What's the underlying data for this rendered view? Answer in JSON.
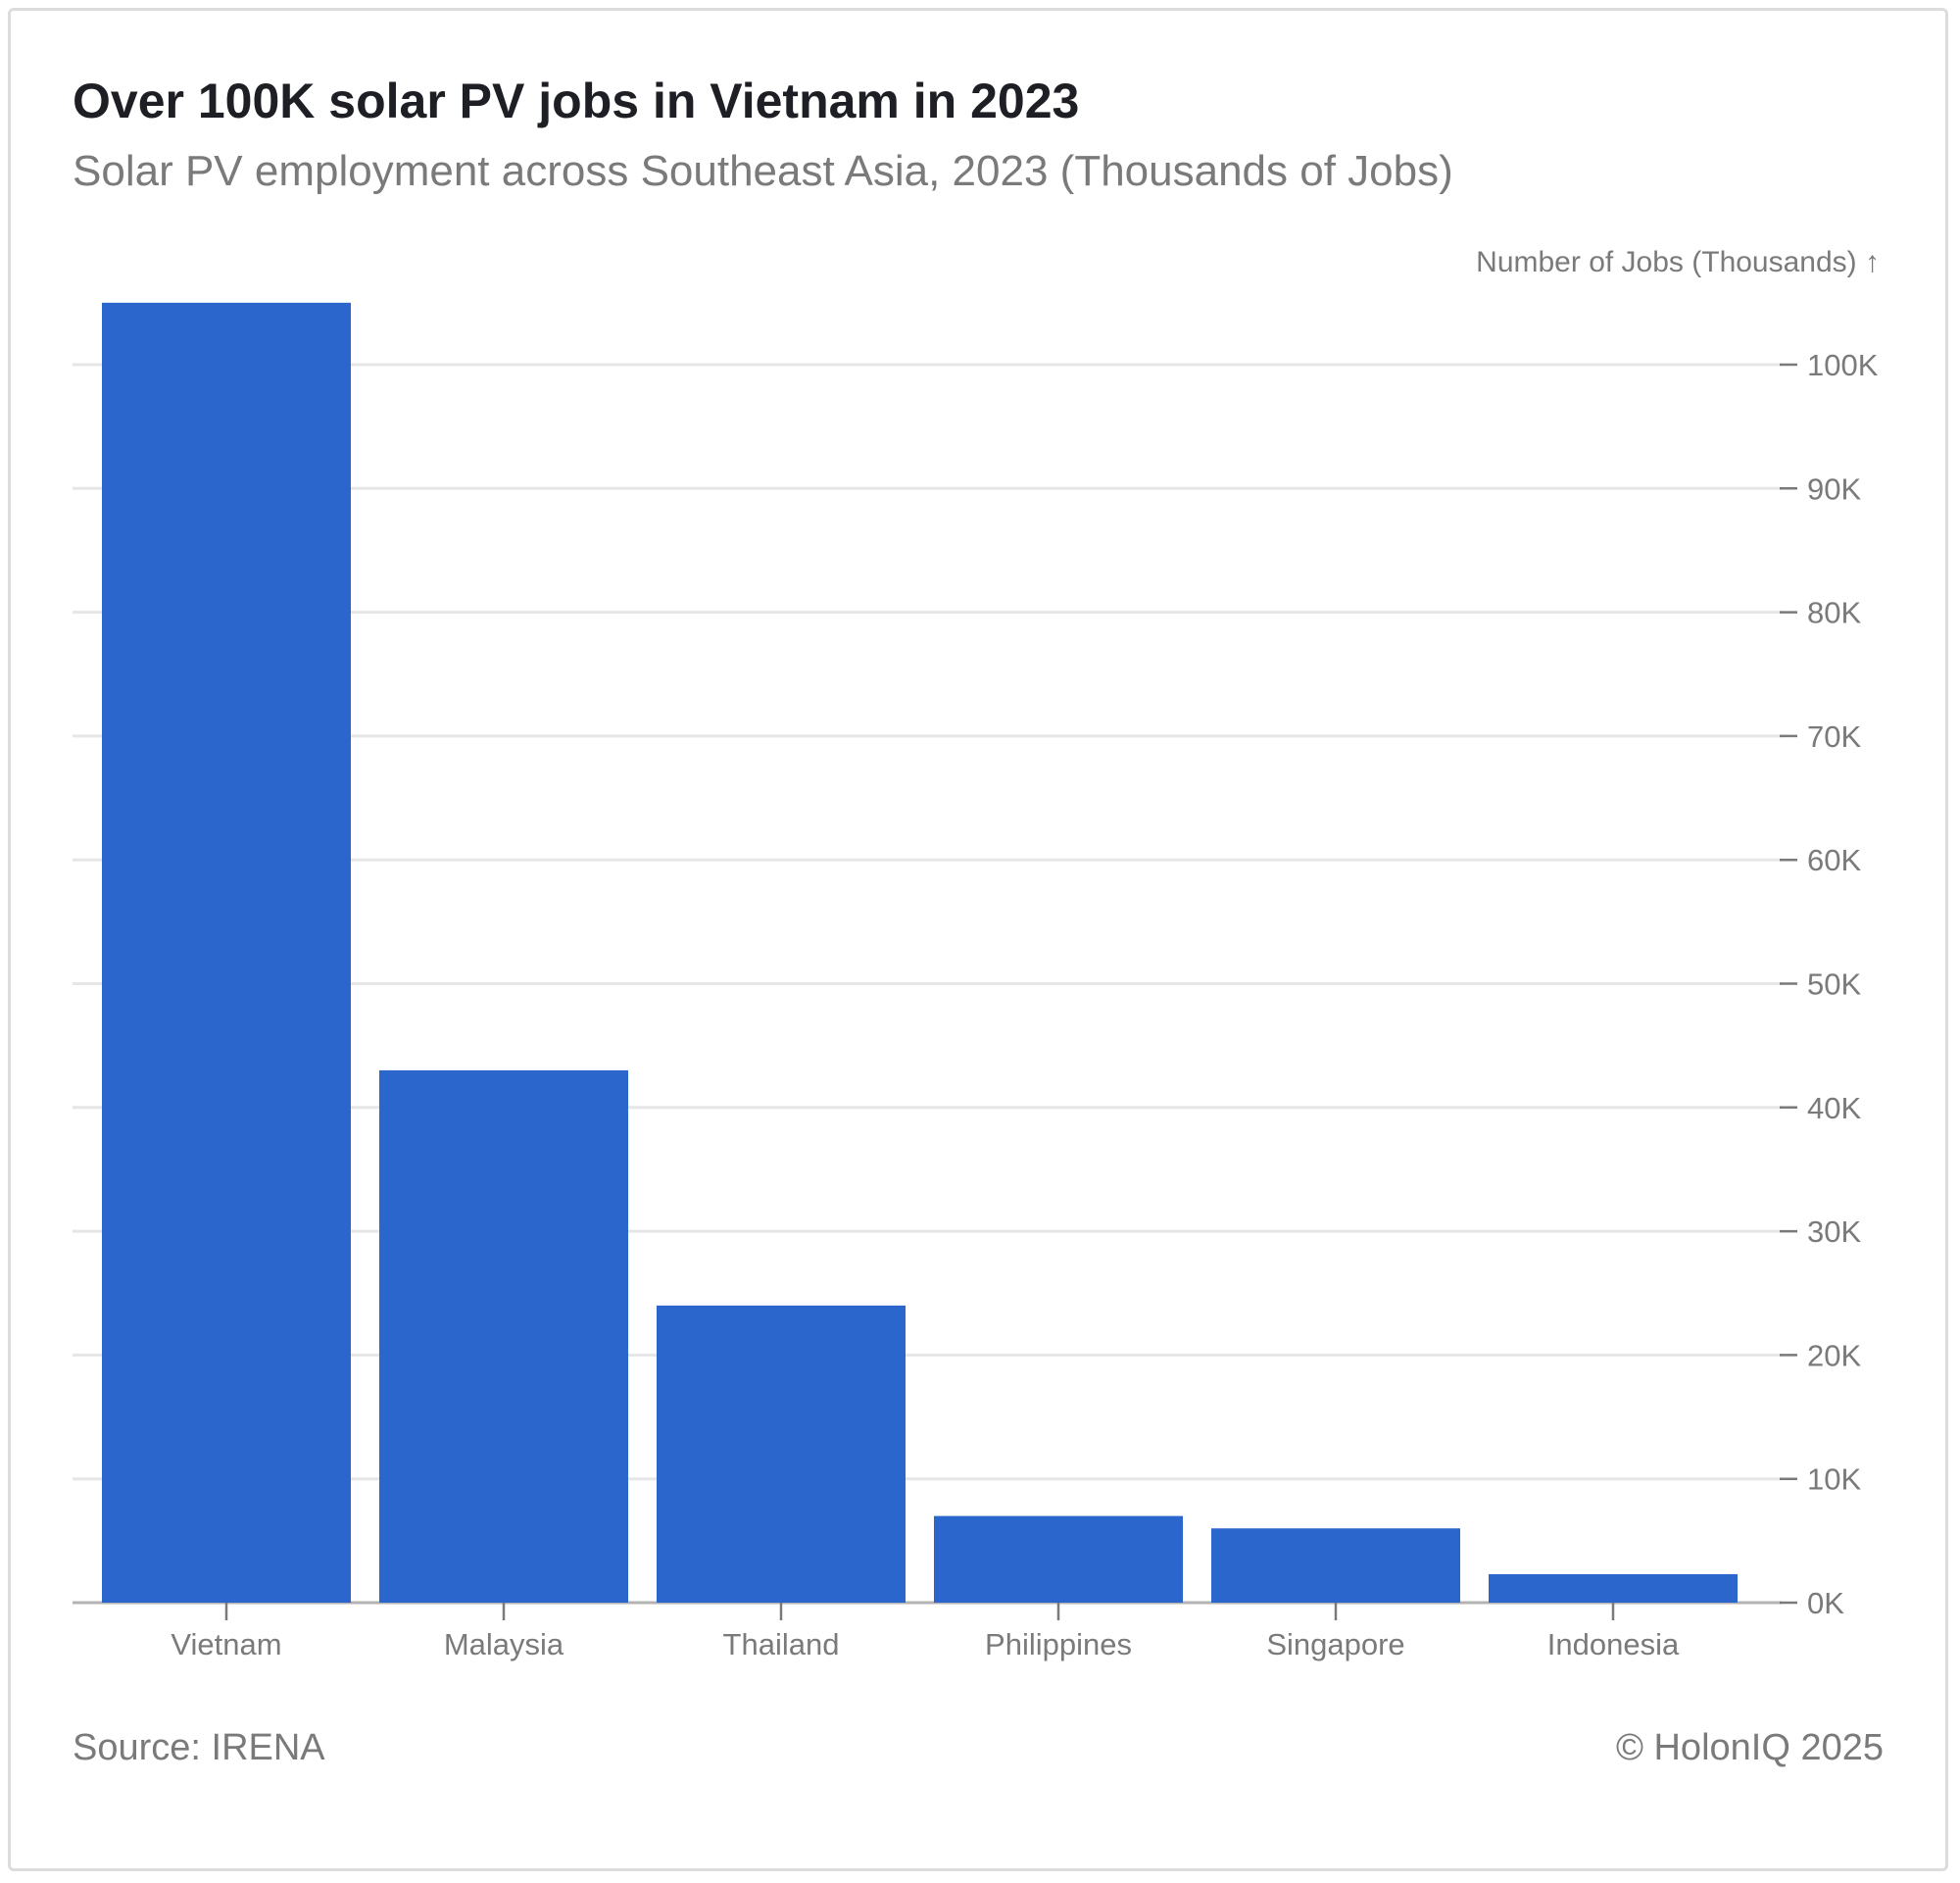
{
  "header": {
    "title": "Over 100K solar PV jobs in Vietnam in 2023",
    "subtitle": "Solar PV employment across Southeast Asia, 2023 (Thousands of Jobs)"
  },
  "footer": {
    "source": "Source: IRENA",
    "copyright": "© HolonIQ 2025"
  },
  "colors": {
    "bar": "#2a66cc",
    "grid": "#e6e6e6",
    "axis_text": "#7a7a7a",
    "baseline": "#b3b3b3"
  },
  "chart_data": {
    "type": "bar",
    "title": "Over 100K solar PV jobs in Vietnam in 2023",
    "subtitle": "Solar PV employment across Southeast Asia, 2023 (Thousands of Jobs)",
    "ylabel": "Number of Jobs (Thousands) ↑",
    "xlabel": "",
    "y_axis_position": "right",
    "grid": true,
    "categories": [
      "Vietnam",
      "Malaysia",
      "Thailand",
      "Philippines",
      "Singapore",
      "Indonesia"
    ],
    "values": [
      105,
      43,
      24,
      7,
      6,
      2.3
    ],
    "ylim": [
      0,
      100
    ],
    "yticks": [
      0,
      10,
      20,
      30,
      40,
      50,
      60,
      70,
      80,
      90,
      100
    ],
    "ytick_labels": [
      "0K",
      "10K",
      "20K",
      "30K",
      "40K",
      "50K",
      "60K",
      "70K",
      "80K",
      "90K",
      "100K"
    ]
  }
}
